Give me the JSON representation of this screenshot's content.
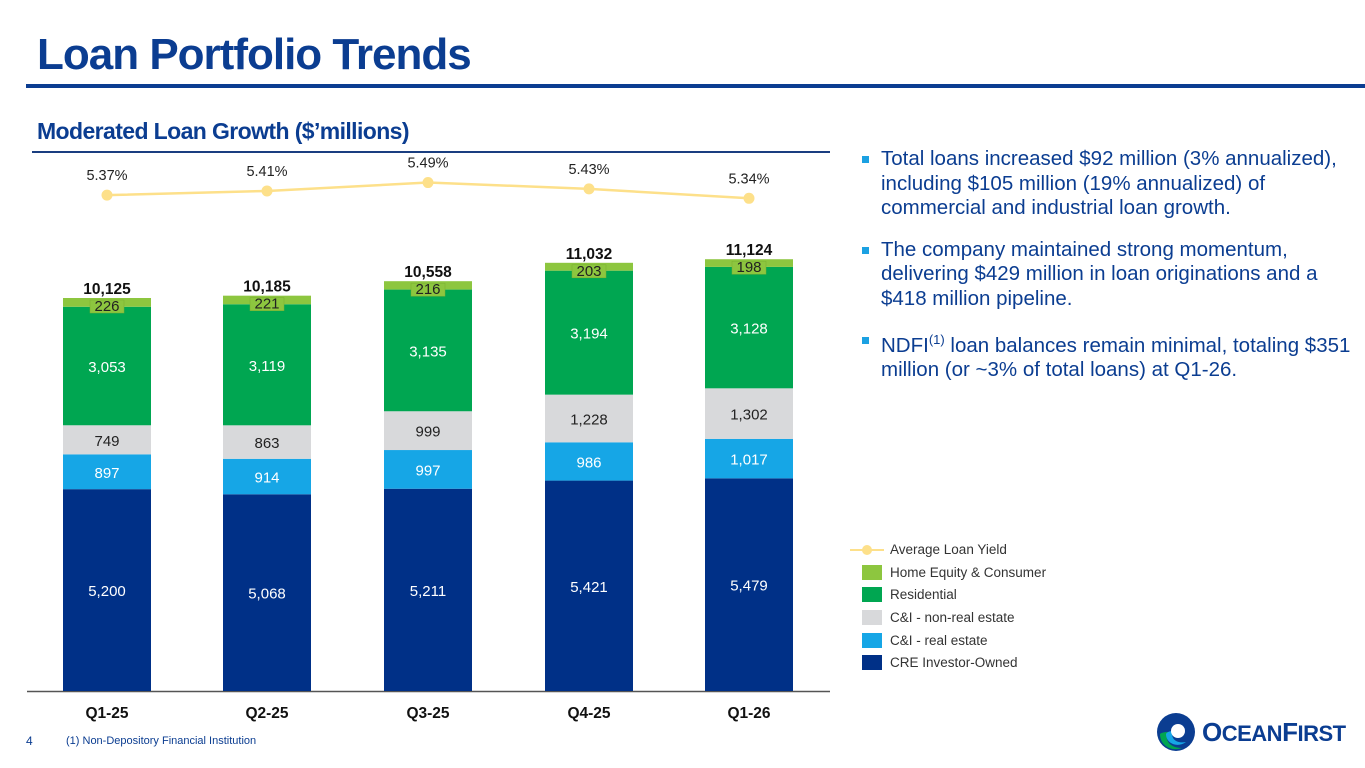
{
  "page": {
    "title": "Loan Portfolio Trends",
    "subtitle": "Moderated Loan Growth ($’millions)",
    "page_number": "4",
    "footnote": "(1) Non-Depository Financial Institution",
    "logo": {
      "text_part1_big": "O",
      "text_part1": "CEAN",
      "text_part2_big": "F",
      "text_part2": "IRST",
      "icon": "oceanfirst-wave-logo-icon"
    }
  },
  "bullets": [
    {
      "text": "Total loans increased $92 million (3% annualized), including $105 million (19% annualized) of commercial and industrial loan growth."
    },
    {
      "text_pre": "NDFI",
      "sup": "(1)",
      "text_post": " loan balances remain minimal, totaling $351 million (or ~3% of total loans) at Q1-26."
    },
    {
      "text": "The company maintained strong momentum, delivering $429 million in loan originations and a $418 million pipeline."
    }
  ],
  "chart_data": {
    "type": "bar",
    "stacked": true,
    "title": "Moderated Loan Growth ($’millions)",
    "xlabel": "",
    "ylabel": "",
    "categories": [
      "Q1-25",
      "Q2-25",
      "Q3-25",
      "Q4-25",
      "Q1-26"
    ],
    "series": [
      {
        "name": "CRE Investor-Owned",
        "color": "#003087",
        "label_color": "#ffffff",
        "values": [
          5200,
          5068,
          5211,
          5421,
          5479
        ],
        "labels": [
          "5,200",
          "5,068",
          "5,211",
          "5,421",
          "5,479"
        ]
      },
      {
        "name": "C&I - real estate",
        "color": "#16a6e6",
        "label_color": "#ffffff",
        "values": [
          897,
          914,
          997,
          986,
          1017
        ],
        "labels": [
          "897",
          "914",
          "997",
          "986",
          "1,017"
        ]
      },
      {
        "name": "C&I - non-real estate",
        "color": "#d8d9db",
        "label_color": "#222222",
        "values": [
          749,
          863,
          999,
          1228,
          1302
        ],
        "labels": [
          "749",
          "863",
          "999",
          "1,228",
          "1,302"
        ]
      },
      {
        "name": "Residential",
        "color": "#00a651",
        "label_color": "#ffffff",
        "values": [
          3053,
          3119,
          3135,
          3194,
          3128
        ],
        "labels": [
          "3,053",
          "3,119",
          "3,135",
          "3,194",
          "3,128"
        ]
      },
      {
        "name": "Home Equity & Consumer",
        "color": "#8dc63f",
        "label_color": "#222222",
        "values": [
          226,
          221,
          216,
          203,
          198
        ],
        "labels": [
          "226",
          "221",
          "216",
          "203",
          "198"
        ]
      }
    ],
    "totals": [
      10125,
      10185,
      10558,
      11032,
      11124
    ],
    "total_labels": [
      "10,125",
      "10,185",
      "10,558",
      "11,032",
      "11,124"
    ],
    "line_series": {
      "name": "Average Loan Yield",
      "color": "#fde08a",
      "unit": "%",
      "values": [
        5.37,
        5.41,
        5.49,
        5.43,
        5.34
      ],
      "labels": [
        "5.37%",
        "5.41%",
        "5.49%",
        "5.43%",
        "5.34%"
      ]
    },
    "legend": {
      "placement": "bottom-right",
      "entries": [
        "Average Loan Yield",
        "Home Equity & Consumer",
        "Residential",
        "C&I - non-real estate",
        "C&I - real estate",
        "CRE Investor-Owned"
      ]
    },
    "grid": false,
    "y_axis_visible": false
  }
}
